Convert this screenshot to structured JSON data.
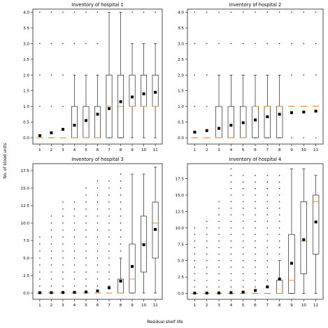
{
  "figure": {
    "ylabel": "No. of blood units",
    "xlabel": "Residual shelf life"
  },
  "colors": {
    "box": "#000000",
    "median": "#ff7f0e",
    "mean_marker": "#000000",
    "background": "#ffffff"
  },
  "chart_data": [
    {
      "type": "box",
      "title": "Inventory of hospital 1",
      "categories": [
        "1",
        "2",
        "3",
        "4",
        "5",
        "6",
        "7",
        "8",
        "9",
        "10",
        "11"
      ],
      "ylim": [
        -0.2,
        4.1
      ],
      "yticks": [
        "0.0",
        "0.5",
        "1.0",
        "1.5",
        "2.0",
        "2.5",
        "3.0",
        "3.5",
        "4.0"
      ],
      "ytick_values": [
        0,
        0.5,
        1,
        1.5,
        2,
        2.5,
        3,
        3.5,
        4
      ],
      "boxes": [
        {
          "q1": 0,
          "median": 0,
          "q3": 0,
          "whislo": 0,
          "whishi": 0,
          "mean": 0.07,
          "fliers": [
            1,
            2,
            3,
            4
          ]
        },
        {
          "q1": 0,
          "median": 0,
          "q3": 0,
          "whislo": 0,
          "whishi": 0,
          "mean": 0.16,
          "fliers": [
            1,
            2,
            3,
            4
          ]
        },
        {
          "q1": 0,
          "median": 0,
          "q3": 0,
          "whislo": 0,
          "whishi": 0,
          "mean": 0.27,
          "fliers": [
            1,
            2,
            3,
            4
          ]
        },
        {
          "q1": 0,
          "median": 0,
          "q3": 1,
          "whislo": 0,
          "whishi": 2,
          "mean": 0.4,
          "fliers": [
            3,
            4
          ]
        },
        {
          "q1": 0,
          "median": 0,
          "q3": 1,
          "whislo": 0,
          "whishi": 2,
          "mean": 0.55,
          "fliers": [
            3,
            4
          ]
        },
        {
          "q1": 0,
          "median": 0,
          "q3": 1,
          "whislo": 0,
          "whishi": 2,
          "mean": 0.75,
          "fliers": [
            3,
            4
          ]
        },
        {
          "q1": 0,
          "median": 1,
          "q3": 2,
          "whislo": 0,
          "whishi": 4,
          "mean": 0.93,
          "fliers": []
        },
        {
          "q1": 0,
          "median": 1,
          "q3": 2,
          "whislo": 0,
          "whishi": 4,
          "mean": 1.15,
          "fliers": []
        },
        {
          "q1": 1,
          "median": 1,
          "q3": 2,
          "whislo": 0,
          "whishi": 3,
          "mean": 1.3,
          "fliers": [
            4
          ]
        },
        {
          "q1": 1,
          "median": 1,
          "q3": 2,
          "whislo": 0,
          "whishi": 3,
          "mean": 1.4,
          "fliers": [
            4
          ]
        },
        {
          "q1": 1,
          "median": 1,
          "q3": 2,
          "whislo": 0,
          "whishi": 3,
          "mean": 1.45,
          "fliers": [
            4
          ]
        }
      ]
    },
    {
      "type": "box",
      "title": "Inventory of hospital 2",
      "categories": [
        "1",
        "2",
        "3",
        "4",
        "5",
        "6",
        "7",
        "8",
        "9",
        "10",
        "11"
      ],
      "ylim": [
        -0.2,
        4.1
      ],
      "yticks": [
        "0.0",
        "0.5",
        "1.0",
        "1.5",
        "2.0",
        "2.5",
        "3.0",
        "3.5",
        "4.0"
      ],
      "ytick_values": [
        0,
        0.5,
        1,
        1.5,
        2,
        2.5,
        3,
        3.5,
        4
      ],
      "boxes": [
        {
          "q1": 0,
          "median": 0,
          "q3": 0,
          "whislo": 0,
          "whishi": 0,
          "mean": 0.18,
          "fliers": [
            1,
            2,
            3,
            4
          ]
        },
        {
          "q1": 0,
          "median": 0,
          "q3": 0,
          "whislo": 0,
          "whishi": 0,
          "mean": 0.23,
          "fliers": [
            1,
            2,
            3,
            4
          ]
        },
        {
          "q1": 0,
          "median": 0,
          "q3": 1,
          "whislo": 0,
          "whishi": 2,
          "mean": 0.3,
          "fliers": [
            3,
            4
          ]
        },
        {
          "q1": 0,
          "median": 0,
          "q3": 1,
          "whislo": 0,
          "whishi": 2,
          "mean": 0.4,
          "fliers": [
            3,
            4
          ]
        },
        {
          "q1": 0,
          "median": 0,
          "q3": 1,
          "whislo": 0,
          "whishi": 2,
          "mean": 0.48,
          "fliers": [
            3,
            4
          ]
        },
        {
          "q1": 0,
          "median": 1,
          "q3": 1,
          "whislo": 0,
          "whishi": 2,
          "mean": 0.57,
          "fliers": [
            3,
            4
          ]
        },
        {
          "q1": 0,
          "median": 1,
          "q3": 1,
          "whislo": 0,
          "whishi": 2,
          "mean": 0.67,
          "fliers": [
            3,
            4
          ]
        },
        {
          "q1": 0,
          "median": 1,
          "q3": 1,
          "whislo": 0,
          "whishi": 2,
          "mean": 0.75,
          "fliers": [
            3,
            4
          ]
        },
        {
          "q1": 1,
          "median": 1,
          "q3": 1,
          "whislo": 1,
          "whishi": 1,
          "mean": 0.8,
          "fliers": [
            0,
            2,
            3,
            4
          ]
        },
        {
          "q1": 1,
          "median": 1,
          "q3": 1,
          "whislo": 1,
          "whishi": 1,
          "mean": 0.82,
          "fliers": [
            0,
            2,
            3,
            4
          ]
        },
        {
          "q1": 1,
          "median": 1,
          "q3": 1,
          "whislo": 1,
          "whishi": 1,
          "mean": 0.85,
          "fliers": [
            0,
            2,
            3,
            4
          ]
        }
      ]
    },
    {
      "type": "box",
      "title": "Inventory of hospital 3",
      "categories": [
        "1",
        "2",
        "3",
        "4",
        "5",
        "6",
        "7",
        "8",
        "9",
        "10",
        "11"
      ],
      "ylim": [
        -0.9,
        18.5
      ],
      "yticks": [
        "0.0",
        "2.5",
        "5.0",
        "7.5",
        "10.0",
        "12.5",
        "15.0",
        "17.5"
      ],
      "ytick_values": [
        0,
        2.5,
        5,
        7.5,
        10,
        12.5,
        15,
        17.5
      ],
      "boxes": [
        {
          "q1": 0,
          "median": 0,
          "q3": 0,
          "whislo": 0,
          "whishi": 0,
          "mean": 0.05,
          "fliers": [
            1,
            2,
            3,
            4,
            5,
            6,
            7,
            8
          ]
        },
        {
          "q1": 0,
          "median": 0,
          "q3": 0,
          "whislo": 0,
          "whishi": 0,
          "mean": 0.06,
          "fliers": [
            1,
            2,
            3,
            4,
            5,
            6,
            7,
            8,
            9,
            10,
            11
          ]
        },
        {
          "q1": 0,
          "median": 0,
          "q3": 0,
          "whislo": 0,
          "whishi": 0,
          "mean": 0.08,
          "fliers": [
            1,
            2,
            3,
            4,
            5,
            6,
            7,
            8,
            9,
            10,
            11,
            12,
            13
          ]
        },
        {
          "q1": 0,
          "median": 0,
          "q3": 0,
          "whislo": 0,
          "whishi": 0,
          "mean": 0.1,
          "fliers": [
            1,
            2,
            3,
            4,
            5,
            6,
            7,
            8,
            9,
            10,
            11,
            12,
            13
          ]
        },
        {
          "q1": 0,
          "median": 0,
          "q3": 0,
          "whislo": 0,
          "whishi": 0,
          "mean": 0.15,
          "fliers": [
            1,
            2,
            3,
            4,
            5,
            6,
            7,
            8,
            9,
            10,
            11,
            12,
            13,
            14,
            15
          ]
        },
        {
          "q1": 0,
          "median": 0,
          "q3": 0,
          "whislo": 0,
          "whishi": 0,
          "mean": 0.3,
          "fliers": [
            1,
            2,
            3,
            4,
            5,
            6,
            7,
            8,
            9,
            10,
            11,
            12,
            13,
            14,
            15,
            16
          ]
        },
        {
          "q1": 0,
          "median": 0,
          "q3": 0,
          "whislo": 0,
          "whishi": 0,
          "mean": 0.75,
          "fliers": [
            1,
            2,
            3,
            4,
            5,
            6,
            7,
            8,
            9,
            10,
            11,
            12,
            13,
            14,
            15,
            16
          ]
        },
        {
          "q1": 0,
          "median": 0,
          "q3": 2,
          "whislo": 0,
          "whishi": 5,
          "mean": 1.7,
          "fliers": [
            6,
            7,
            8,
            9,
            10,
            11,
            12,
            13,
            14,
            15,
            16,
            17
          ]
        },
        {
          "q1": 0,
          "median": 2,
          "q3": 7,
          "whislo": 0,
          "whishi": 17,
          "mean": 3.8,
          "fliers": []
        },
        {
          "q1": 3,
          "median": 7,
          "q3": 11,
          "whislo": 0,
          "whishi": 17,
          "mean": 6.9,
          "fliers": []
        },
        {
          "q1": 5,
          "median": 10,
          "q3": 13,
          "whislo": 0,
          "whishi": 18,
          "mean": 9.1,
          "fliers": []
        }
      ]
    },
    {
      "type": "box",
      "title": "Inventory of hospital 4",
      "categories": [
        "1",
        "2",
        "3",
        "4",
        "5",
        "6",
        "7",
        "8",
        "9",
        "10",
        "11"
      ],
      "ylim": [
        -0.9,
        19.8
      ],
      "yticks": [
        "0.0",
        "2.5",
        "5.0",
        "7.5",
        "10.0",
        "12.5",
        "15.0",
        "17.5"
      ],
      "ytick_values": [
        0,
        2.5,
        5,
        7.5,
        10,
        12.5,
        15,
        17.5
      ],
      "boxes": [
        {
          "q1": 0,
          "median": 0,
          "q3": 0,
          "whislo": 0,
          "whishi": 0,
          "mean": 0.05,
          "fliers": [
            1,
            2,
            3,
            4,
            5,
            6,
            7,
            8,
            9,
            10
          ]
        },
        {
          "q1": 0,
          "median": 0,
          "q3": 0,
          "whislo": 0,
          "whishi": 0,
          "mean": 0.06,
          "fliers": [
            1,
            2,
            3,
            4,
            5,
            6,
            7,
            8,
            9,
            10,
            11
          ]
        },
        {
          "q1": 0,
          "median": 0,
          "q3": 0,
          "whislo": 0,
          "whishi": 0,
          "mean": 0.08,
          "fliers": [
            1,
            2,
            3,
            4,
            5,
            6,
            7,
            8,
            9,
            10,
            11,
            12,
            13,
            14
          ]
        },
        {
          "q1": 0,
          "median": 0,
          "q3": 0,
          "whislo": 0,
          "whishi": 0,
          "mean": 0.12,
          "fliers": [
            1,
            2,
            3,
            4,
            5,
            6,
            7,
            8,
            9,
            10,
            11,
            12,
            13,
            14,
            15,
            16,
            17,
            18,
            19
          ]
        },
        {
          "q1": 0,
          "median": 0,
          "q3": 0,
          "whislo": 0,
          "whishi": 0,
          "mean": 0.2,
          "fliers": [
            1,
            2,
            3,
            4,
            5,
            6,
            7,
            8,
            9,
            10,
            11,
            12,
            13,
            14,
            15,
            16,
            17,
            18
          ]
        },
        {
          "q1": 0,
          "median": 0,
          "q3": 0,
          "whislo": 0,
          "whishi": 0,
          "mean": 0.45,
          "fliers": [
            1,
            2,
            3,
            4,
            5,
            6,
            7,
            8,
            9,
            10,
            11,
            12,
            13,
            14,
            15,
            16,
            17,
            18
          ]
        },
        {
          "q1": 0,
          "median": 0,
          "q3": 0,
          "whislo": 0,
          "whishi": 0,
          "mean": 1.0,
          "fliers": [
            1,
            2,
            3,
            4,
            5,
            6,
            7,
            8,
            9,
            10,
            11,
            12,
            13,
            14,
            15,
            16,
            17,
            18
          ]
        },
        {
          "q1": 0,
          "median": 0,
          "q3": 2,
          "whislo": 0,
          "whishi": 5,
          "mean": 2.2,
          "fliers": [
            6,
            7,
            8,
            9,
            10,
            11,
            12,
            13,
            14,
            15,
            16,
            17,
            18
          ]
        },
        {
          "q1": 0,
          "median": 2,
          "q3": 9,
          "whislo": 0,
          "whishi": 19,
          "mean": 4.6,
          "fliers": []
        },
        {
          "q1": 3,
          "median": 8,
          "q3": 14,
          "whislo": 0,
          "whishi": 19,
          "mean": 8.2,
          "fliers": []
        },
        {
          "q1": 6,
          "median": 14,
          "q3": 15,
          "whislo": 0,
          "whishi": 18,
          "mean": 10.9,
          "fliers": []
        }
      ]
    }
  ]
}
